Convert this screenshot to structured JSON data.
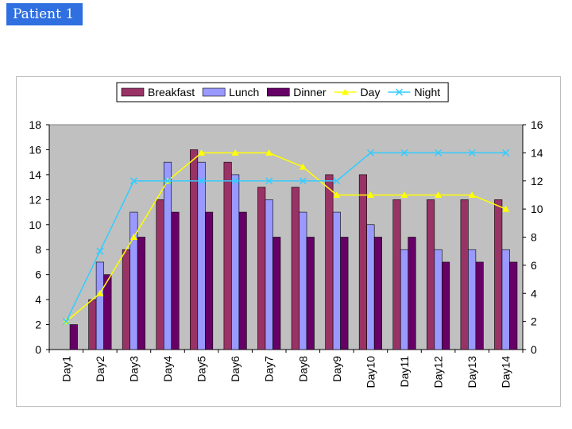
{
  "slide": {
    "title": "Patient 1"
  },
  "chart_data": {
    "type": "bar",
    "categories": [
      "Day1",
      "Day2",
      "Day3",
      "Day4",
      "Day5",
      "Day6",
      "Day7",
      "Day8",
      "Day9",
      "Day10",
      "Day11",
      "Day12",
      "Day13",
      "Day14"
    ],
    "series": [
      {
        "name": "Breakfast",
        "type": "bar",
        "axis": "left",
        "color": "#993366",
        "values": [
          0,
          4,
          8,
          12,
          16,
          15,
          13,
          13,
          14,
          14,
          12,
          12,
          12,
          12
        ]
      },
      {
        "name": "Lunch",
        "type": "bar",
        "axis": "left",
        "color": "#9999ff",
        "values": [
          0,
          7,
          11,
          15,
          15,
          14,
          12,
          11,
          11,
          10,
          8,
          8,
          8,
          8
        ]
      },
      {
        "name": "Dinner",
        "type": "bar",
        "axis": "left",
        "color": "#660066",
        "values": [
          2,
          6,
          9,
          11,
          11,
          11,
          9,
          9,
          9,
          9,
          9,
          7,
          7,
          7
        ]
      },
      {
        "name": "Day",
        "type": "line",
        "axis": "right",
        "color": "#ffff00",
        "marker": "triangle",
        "values": [
          2,
          4,
          8,
          12,
          14,
          14,
          14,
          13,
          11,
          11,
          11,
          11,
          11,
          10
        ]
      },
      {
        "name": "Night",
        "type": "line",
        "axis": "right",
        "color": "#33ccff",
        "marker": "x",
        "values": [
          2,
          7,
          12,
          12,
          12,
          12,
          12,
          12,
          12,
          14,
          14,
          14,
          14,
          14
        ]
      }
    ],
    "ylim_left": [
      0,
      18
    ],
    "yticks_left": [
      0,
      2,
      4,
      6,
      8,
      10,
      12,
      14,
      16,
      18
    ],
    "ylim_right": [
      0,
      16
    ],
    "yticks_right": [
      0,
      2,
      4,
      6,
      8,
      10,
      12,
      14,
      16
    ],
    "plot_background": "#c0c0c0",
    "grid": false,
    "legend_position": "top"
  }
}
